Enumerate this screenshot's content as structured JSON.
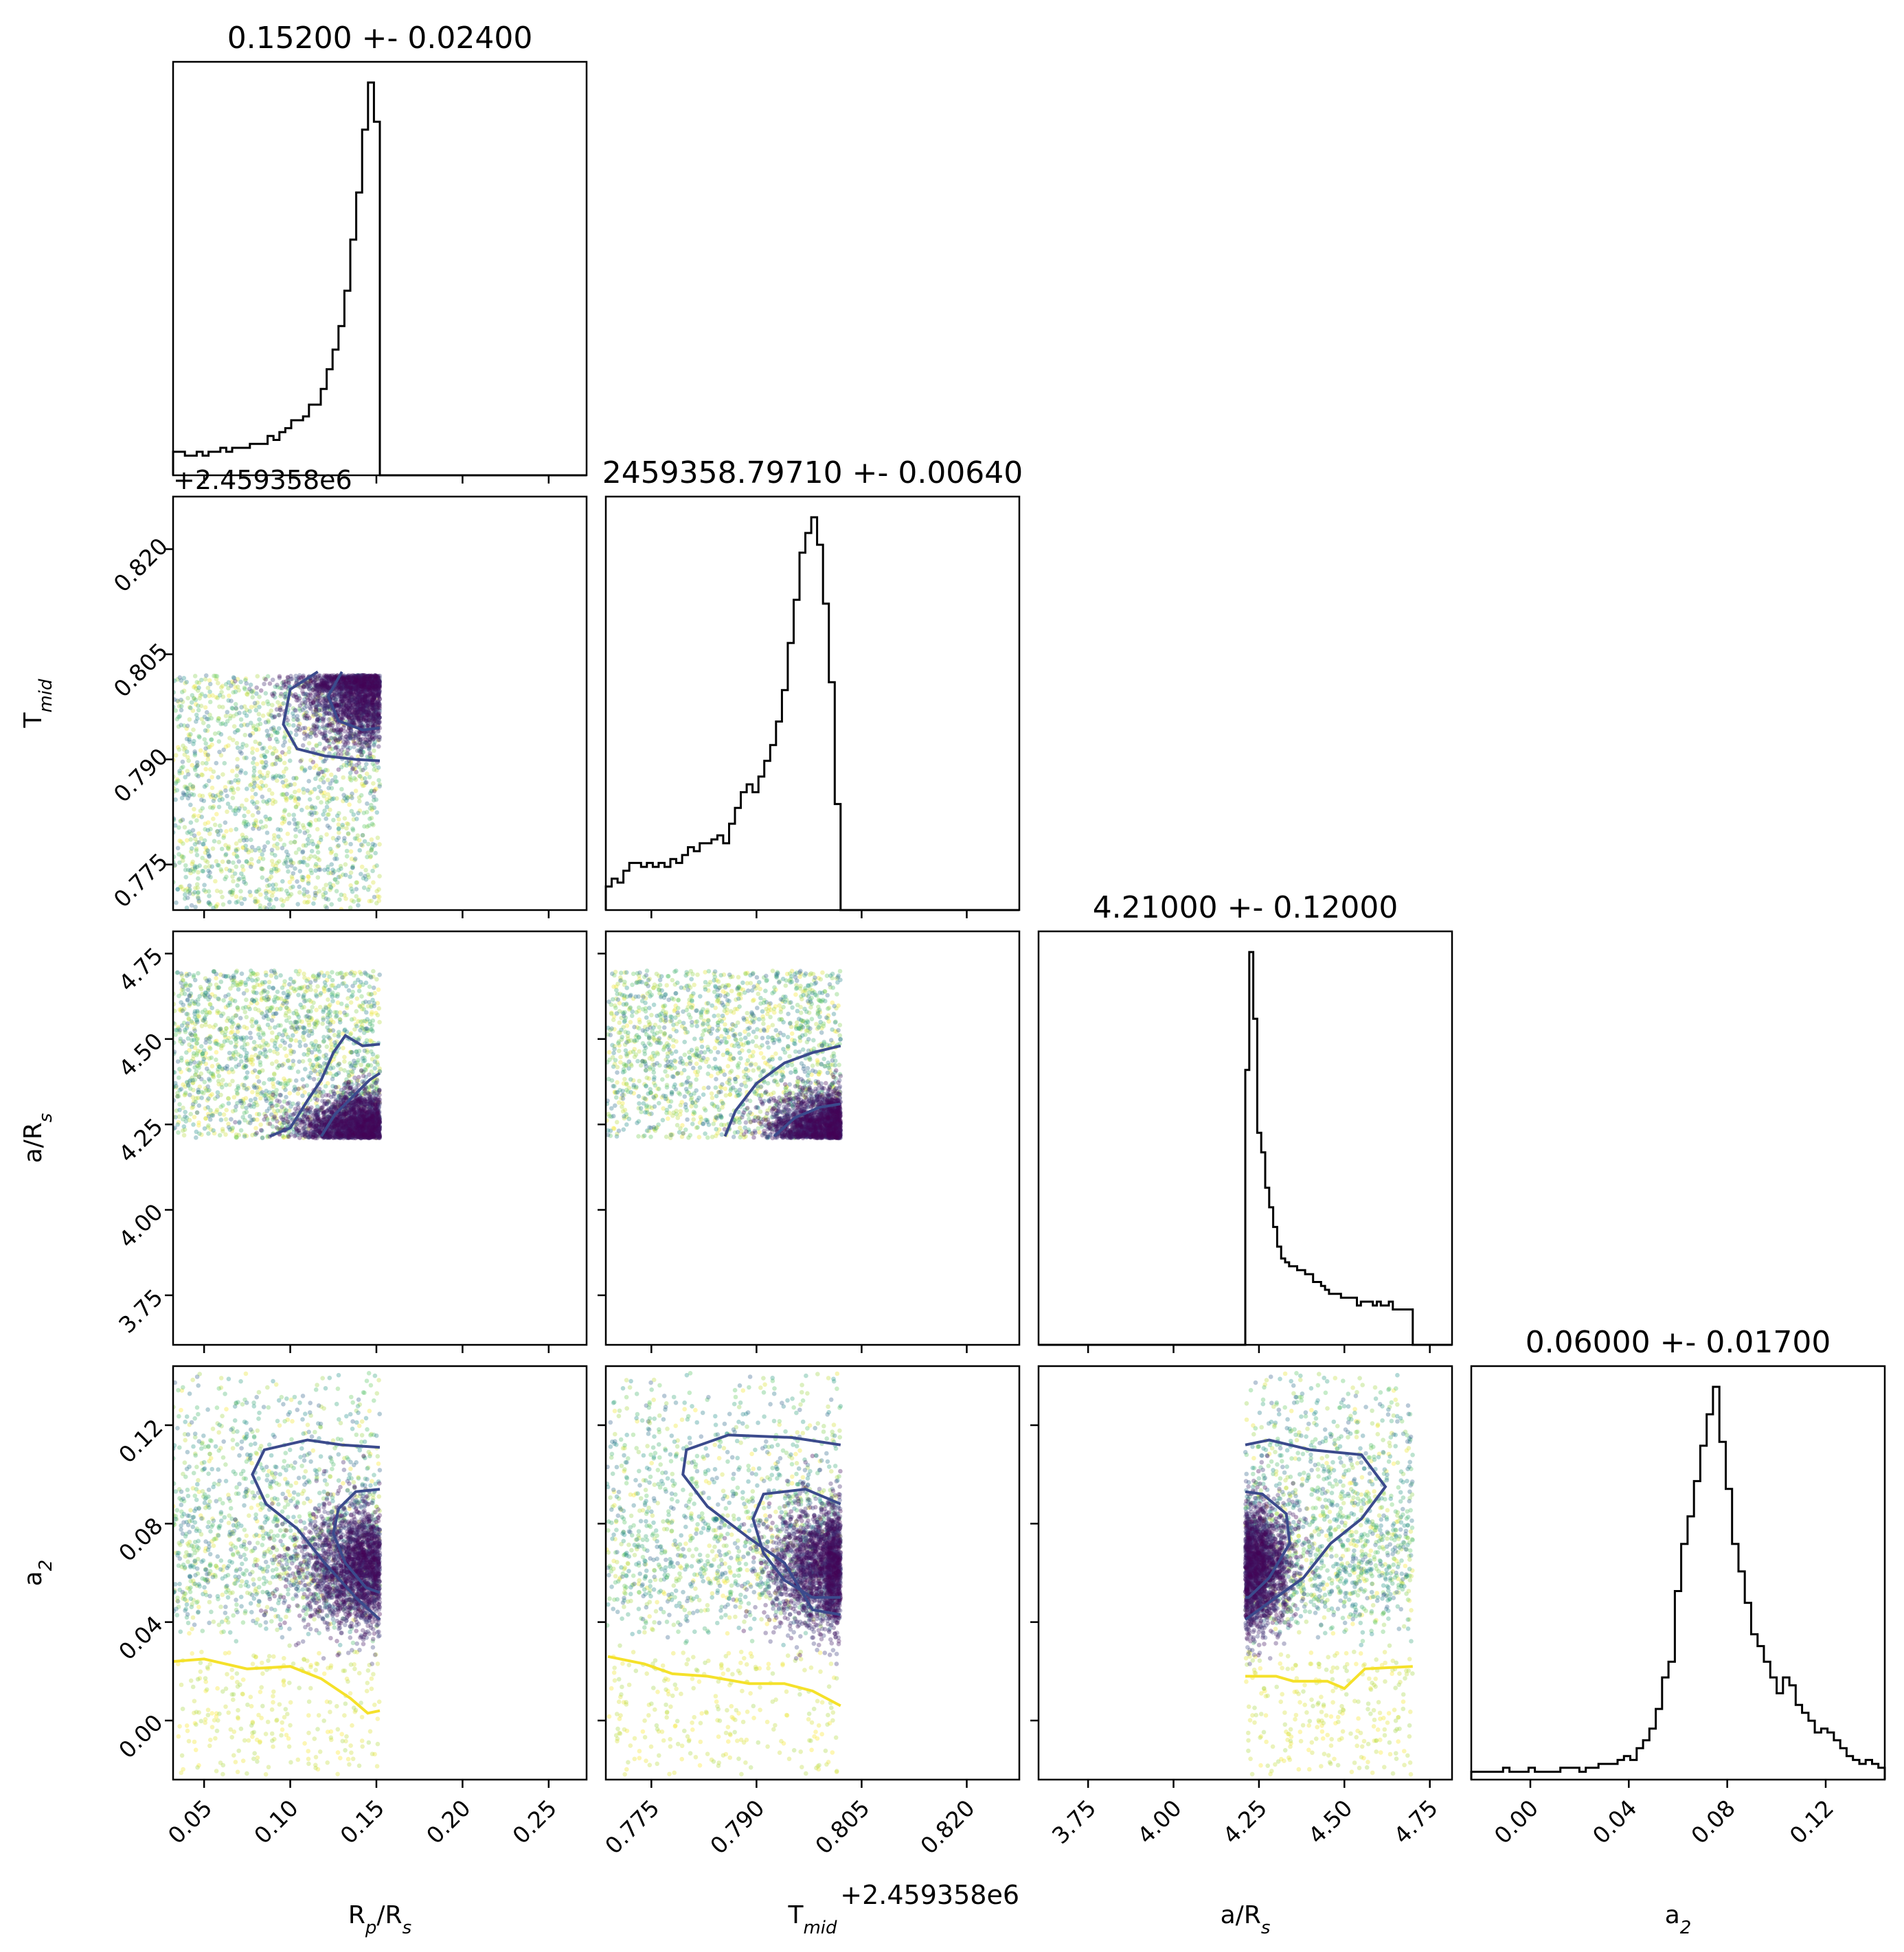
{
  "chart_data": {
    "type": "corner",
    "parameters": [
      {
        "key": "rp",
        "label": "R",
        "label_sub": "p",
        "label_tail": "/R",
        "label_tail_sub": "s",
        "title": "0.15200 +- 0.02400",
        "range": [
          0.032,
          0.272
        ],
        "ticks": [
          0.05,
          0.1,
          0.15,
          0.2,
          0.25
        ],
        "tick_labels": [
          "0.05",
          "0.10",
          "0.15",
          "0.20",
          "0.25"
        ]
      },
      {
        "key": "tmid",
        "label": "T",
        "label_sub": "mid",
        "label_tail": "",
        "label_tail_sub": "",
        "title": "2459358.79710 +- 0.00640",
        "range": [
          0.7685,
          0.8275
        ],
        "ticks": [
          0.775,
          0.79,
          0.805,
          0.82
        ],
        "tick_labels": [
          "0.775",
          "0.790",
          "0.805",
          "0.820"
        ],
        "offset_label": "+2.459358e6"
      },
      {
        "key": "ars",
        "label": "a/R",
        "label_sub": "s",
        "label_tail": "",
        "label_tail_sub": "",
        "title": "4.21000 +- 0.12000",
        "range": [
          3.605,
          4.815
        ],
        "ticks": [
          3.75,
          4.0,
          4.25,
          4.5,
          4.75
        ],
        "tick_labels": [
          "3.75",
          "4.00",
          "4.25",
          "4.50",
          "4.75"
        ]
      },
      {
        "key": "a2",
        "label": "a",
        "label_sub": "2",
        "label_tail": "",
        "label_tail_sub": "",
        "title": "0.06000 +- 0.01700",
        "range": [
          -0.024,
          0.144
        ],
        "ticks": [
          0.0,
          0.04,
          0.08,
          0.12
        ],
        "tick_labels": [
          "0.00",
          "0.04",
          "0.08",
          "0.12"
        ]
      }
    ],
    "histograms": {
      "rp": {
        "bins": [
          0.032,
          0.152
        ],
        "heights": [
          0.06,
          0.06,
          0.05,
          0.05,
          0.06,
          0.05,
          0.06,
          0.06,
          0.07,
          0.06,
          0.07,
          0.07,
          0.07,
          0.08,
          0.08,
          0.08,
          0.1,
          0.09,
          0.11,
          0.12,
          0.14,
          0.14,
          0.15,
          0.18,
          0.18,
          0.22,
          0.27,
          0.32,
          0.38,
          0.47,
          0.6,
          0.72,
          0.88,
          1.0,
          0.9
        ]
      },
      "tmid": {
        "bins": [
          0.7685,
          0.802
        ],
        "heights": [
          0.06,
          0.08,
          0.07,
          0.1,
          0.12,
          0.12,
          0.11,
          0.12,
          0.11,
          0.12,
          0.11,
          0.13,
          0.12,
          0.14,
          0.16,
          0.15,
          0.17,
          0.17,
          0.18,
          0.19,
          0.17,
          0.22,
          0.26,
          0.3,
          0.32,
          0.3,
          0.34,
          0.38,
          0.42,
          0.48,
          0.56,
          0.68,
          0.79,
          0.91,
          0.96,
          1.0,
          0.93,
          0.78,
          0.58,
          0.27
        ]
      },
      "ars": {
        "bins": [
          4.21,
          4.7
        ],
        "heights": [
          0.7,
          1.0,
          0.83,
          0.54,
          0.49,
          0.4,
          0.35,
          0.3,
          0.25,
          0.22,
          0.21,
          0.2,
          0.2,
          0.19,
          0.19,
          0.18,
          0.18,
          0.16,
          0.16,
          0.15,
          0.14,
          0.13,
          0.13,
          0.13,
          0.12,
          0.12,
          0.12,
          0.12,
          0.1,
          0.11,
          0.11,
          0.11,
          0.1,
          0.11,
          0.1,
          0.1,
          0.11,
          0.09,
          0.09,
          0.09,
          0.09,
          0.09
        ]
      },
      "a2": {
        "bins": [
          -0.024,
          0.144
        ],
        "heights": [
          0.02,
          0.02,
          0.02,
          0.02,
          0.02,
          0.03,
          0.02,
          0.02,
          0.02,
          0.03,
          0.02,
          0.02,
          0.02,
          0.02,
          0.03,
          0.03,
          0.03,
          0.02,
          0.03,
          0.03,
          0.04,
          0.04,
          0.04,
          0.05,
          0.06,
          0.05,
          0.08,
          0.1,
          0.13,
          0.18,
          0.26,
          0.3,
          0.48,
          0.6,
          0.67,
          0.76,
          0.85,
          0.93,
          1.0,
          0.86,
          0.74,
          0.6,
          0.53,
          0.45,
          0.37,
          0.34,
          0.3,
          0.26,
          0.22,
          0.26,
          0.24,
          0.19,
          0.17,
          0.15,
          0.12,
          0.13,
          0.12,
          0.1,
          0.08,
          0.06,
          0.05,
          0.04,
          0.05,
          0.04,
          0.03
        ]
      }
    },
    "colormap": [
      "#440154",
      "#3b528b",
      "#21918c",
      "#5ec962",
      "#fde725"
    ],
    "contour_color": "#3b4a8c",
    "low_contour_color": "#f5e12a"
  }
}
